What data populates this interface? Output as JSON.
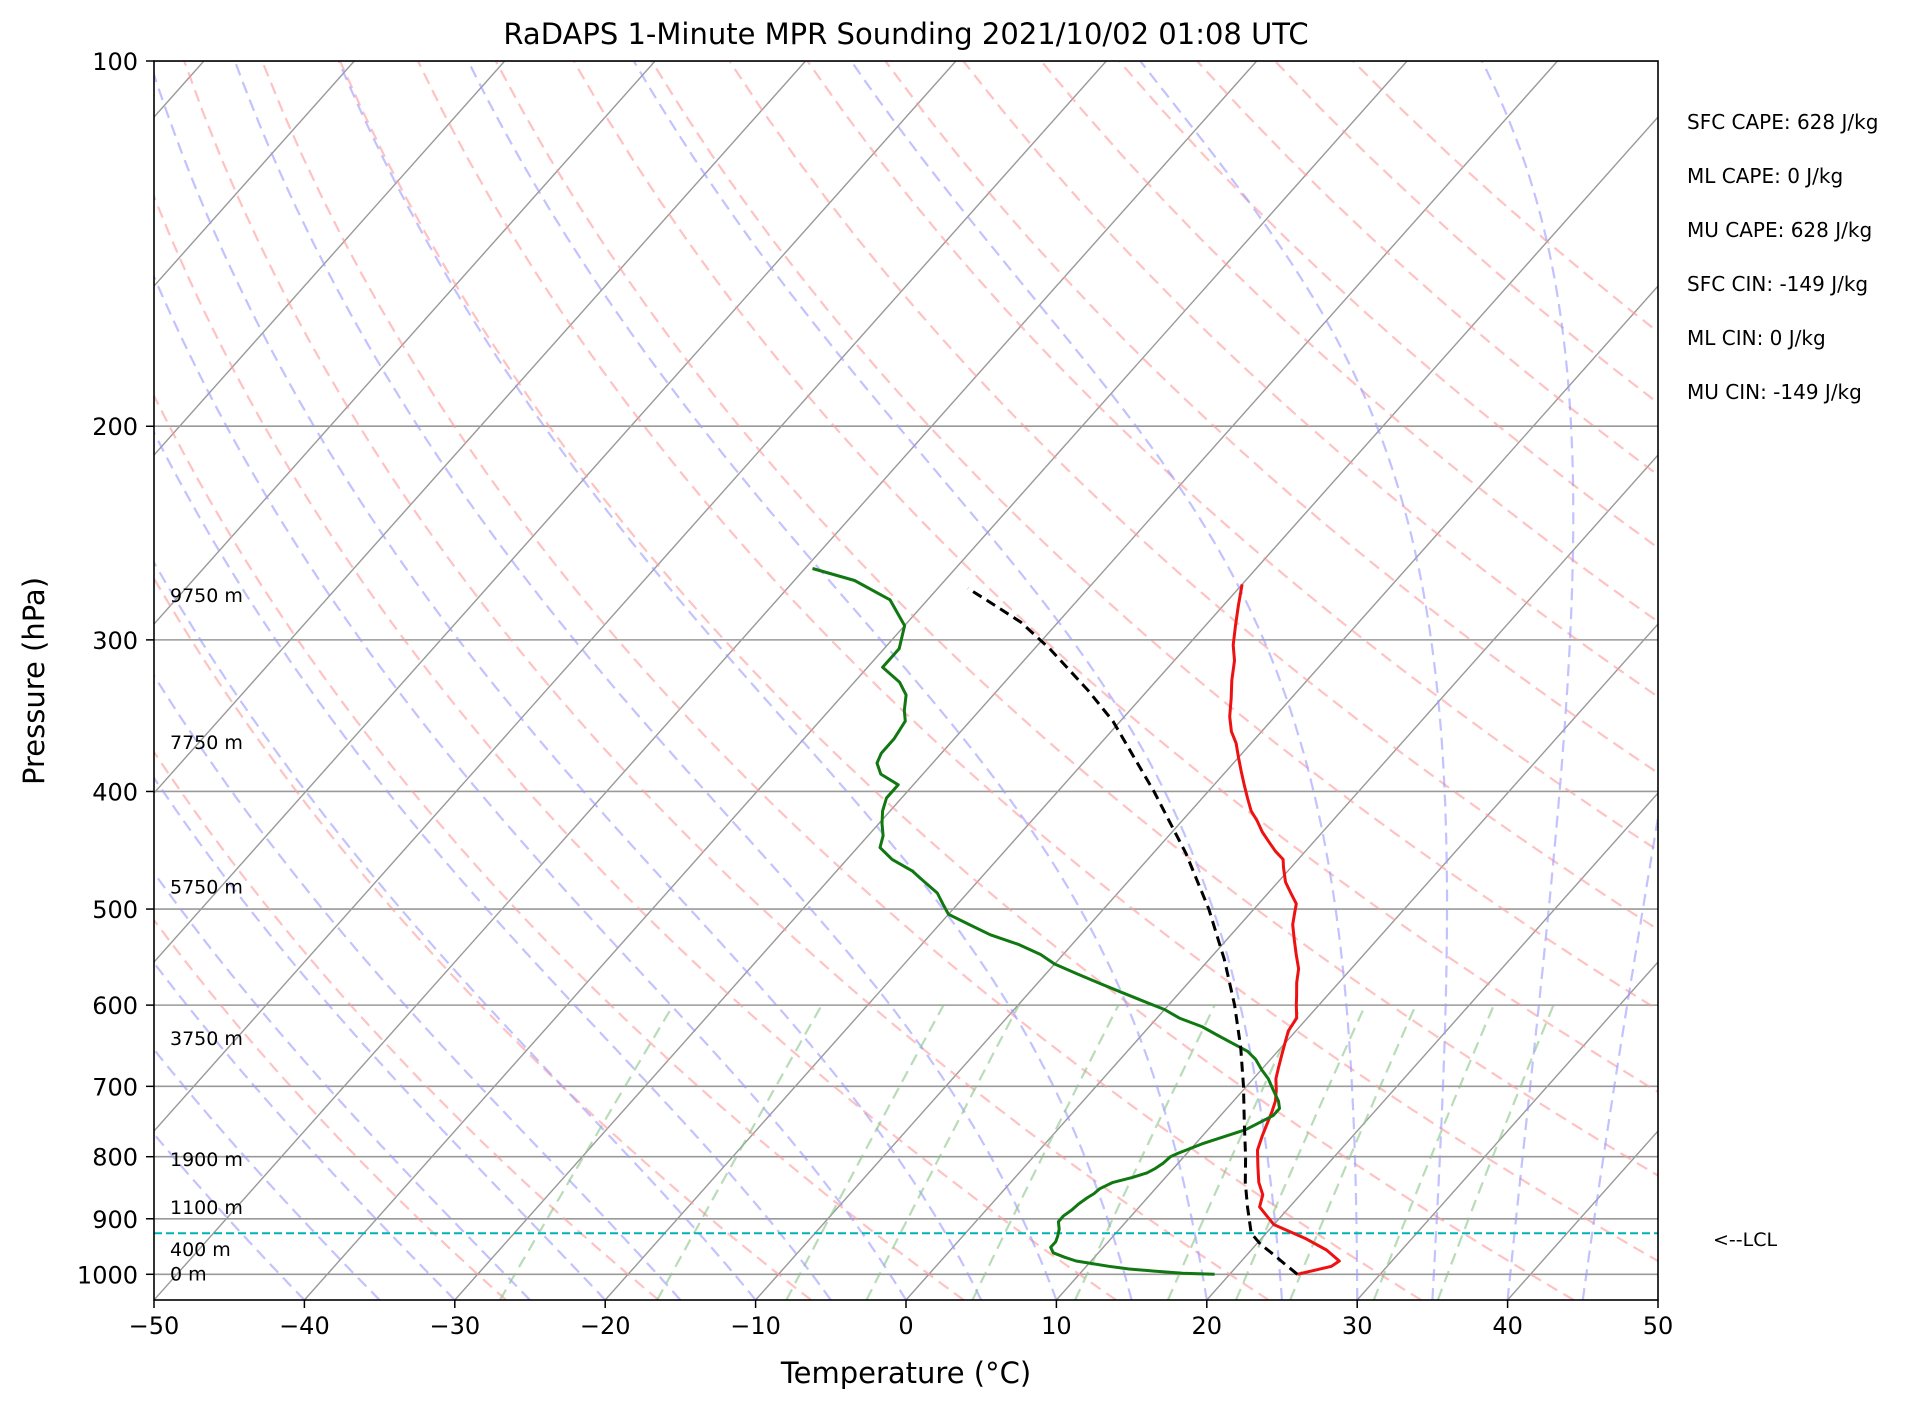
{
  "chart_data": {
    "type": "line",
    "title": "RaDAPS 1-Minute MPR Sounding 2021/10/02 01:08 UTC",
    "xlabel": "Temperature (°C)",
    "ylabel": "Pressure (hPa)",
    "xlim": [
      -50,
      50
    ],
    "ylim": [
      1050,
      100
    ],
    "y_scale": "log",
    "grid": true,
    "x_ticks": [
      -50,
      -40,
      -30,
      -20,
      -10,
      0,
      10,
      20,
      30,
      40,
      50
    ],
    "y_ticks": [
      1000,
      900,
      800,
      700,
      600,
      500,
      400,
      300,
      200,
      100
    ],
    "x_tick_labels": [
      "−50",
      "−40",
      "−30",
      "−20",
      "−10",
      "0",
      "10",
      "20",
      "30",
      "40",
      "50"
    ],
    "y_tick_labels": [
      "1000",
      "900",
      "800",
      "700",
      "600",
      "500",
      "400",
      "300",
      "200",
      "100"
    ],
    "colors": {
      "temperature": "#ee1111",
      "dewpoint": "#117711",
      "parcel": "#000000",
      "lcl": "#00b3b3",
      "dry_adiabat": "#ff9999",
      "moist_adiabat": "#9999ff",
      "mixing_ratio": "#88c488",
      "isotherm": "#999999"
    },
    "series": [
      {
        "key": "temperature",
        "points": [
          [
            24.5,
            1000
          ],
          [
            26.3,
            985
          ],
          [
            26.5,
            975
          ],
          [
            25.0,
            955
          ],
          [
            23.0,
            935
          ],
          [
            20.0,
            910
          ],
          [
            19.0,
            895
          ],
          [
            18.0,
            880
          ],
          [
            17.5,
            860
          ],
          [
            16.5,
            840
          ],
          [
            15.5,
            815
          ],
          [
            14.5,
            790
          ],
          [
            14.0,
            770
          ],
          [
            13.2,
            735
          ],
          [
            12.8,
            720
          ],
          [
            12.2,
            705
          ],
          [
            11.5,
            690
          ],
          [
            11.0,
            675
          ],
          [
            10.5,
            660
          ],
          [
            10.0,
            645
          ],
          [
            9.5,
            630
          ],
          [
            9.3,
            615
          ],
          [
            8.5,
            600
          ],
          [
            8.0,
            590
          ],
          [
            7.2,
            575
          ],
          [
            6.5,
            560
          ],
          [
            5.5,
            545
          ],
          [
            4.5,
            530
          ],
          [
            3.5,
            515
          ],
          [
            3.0,
            505
          ],
          [
            2.5,
            495
          ],
          [
            1.5,
            485
          ],
          [
            0.5,
            475
          ],
          [
            -0.5,
            462
          ],
          [
            -1.0,
            455
          ],
          [
            -2.0,
            448
          ],
          [
            -3.0,
            440
          ],
          [
            -4.0,
            432
          ],
          [
            -5.0,
            423
          ],
          [
            -6.0,
            415
          ],
          [
            -7.0,
            405
          ],
          [
            -8.0,
            395
          ],
          [
            -9.0,
            385
          ],
          [
            -10.0,
            375
          ],
          [
            -11.0,
            365
          ],
          [
            -12.0,
            357
          ],
          [
            -13.0,
            347
          ],
          [
            -14.0,
            335
          ],
          [
            -15.0,
            324
          ],
          [
            -16.0,
            312
          ],
          [
            -17.0,
            303
          ],
          [
            -18.0,
            292
          ],
          [
            -19.0,
            281
          ],
          [
            -20.0,
            270
          ]
        ]
      },
      {
        "key": "dewpoint",
        "points": [
          [
            19.0,
            1000
          ],
          [
            16.8,
            998
          ],
          [
            14.8,
            994
          ],
          [
            13.0,
            990
          ],
          [
            11.5,
            985
          ],
          [
            9.0,
            975
          ],
          [
            8.0,
            968
          ],
          [
            7.0,
            960
          ],
          [
            6.5,
            950
          ],
          [
            6.5,
            940
          ],
          [
            6.3,
            930
          ],
          [
            6.0,
            918
          ],
          [
            5.5,
            905
          ],
          [
            5.5,
            895
          ],
          [
            5.7,
            885
          ],
          [
            5.8,
            875
          ],
          [
            6.0,
            865
          ],
          [
            6.2,
            858
          ],
          [
            6.3,
            850
          ],
          [
            6.8,
            840
          ],
          [
            7.8,
            832
          ],
          [
            8.5,
            825
          ],
          [
            8.8,
            818
          ],
          [
            9.0,
            810
          ],
          [
            9.1,
            800
          ],
          [
            9.4,
            795
          ],
          [
            10.5,
            780
          ],
          [
            11.5,
            770
          ],
          [
            12.5,
            760
          ],
          [
            13.0,
            750
          ],
          [
            13.5,
            740
          ],
          [
            13.5,
            730
          ],
          [
            13.0,
            720
          ],
          [
            12.0,
            705
          ],
          [
            11.0,
            690
          ],
          [
            10.0,
            678
          ],
          [
            9.0,
            665
          ],
          [
            8.0,
            655
          ],
          [
            6.5,
            645
          ],
          [
            5.0,
            635
          ],
          [
            3.5,
            625
          ],
          [
            1.5,
            615
          ],
          [
            0,
            605
          ],
          [
            -2.0,
            595
          ],
          [
            -4.0,
            585
          ],
          [
            -6.0,
            575
          ],
          [
            -8.0,
            565
          ],
          [
            -10.0,
            555
          ],
          [
            -11.5,
            545
          ],
          [
            -13.5,
            535
          ],
          [
            -16.0,
            525
          ],
          [
            -18.0,
            515
          ],
          [
            -20.0,
            505
          ],
          [
            -21.0,
            495
          ],
          [
            -22.0,
            485
          ],
          [
            -23.5,
            475
          ],
          [
            -25.0,
            465
          ],
          [
            -27.0,
            455
          ],
          [
            -28.5,
            445
          ],
          [
            -29.0,
            435
          ],
          [
            -29.8,
            425
          ],
          [
            -30.5,
            415
          ],
          [
            -31.0,
            405
          ],
          [
            -31.0,
            395
          ],
          [
            -32.8,
            387
          ],
          [
            -33.7,
            379
          ],
          [
            -34.0,
            372
          ],
          [
            -34.0,
            362
          ],
          [
            -34.3,
            350
          ],
          [
            -35.0,
            343
          ],
          [
            -35.8,
            333
          ],
          [
            -37.0,
            325
          ],
          [
            -39.0,
            316
          ],
          [
            -39.0,
            305
          ],
          [
            -40.0,
            292
          ],
          [
            -42.5,
            278
          ],
          [
            -46.0,
            268
          ],
          [
            -49.5,
            262
          ]
        ]
      },
      {
        "key": "parcel",
        "points": [
          [
            24.5,
            1000
          ],
          [
            23.0,
            980
          ],
          [
            21.5,
            960
          ],
          [
            20.3,
            945
          ],
          [
            19.0,
            925
          ],
          [
            17.2,
            880
          ],
          [
            15.6,
            840
          ],
          [
            14.1,
            800
          ],
          [
            12.0,
            750
          ],
          [
            9.8,
            700
          ],
          [
            7.3,
            650
          ],
          [
            4.4,
            600
          ],
          [
            1.0,
            550
          ],
          [
            -3.0,
            500
          ],
          [
            -7.8,
            450
          ],
          [
            -13.6,
            400
          ],
          [
            -20.5,
            350
          ],
          [
            -24.0,
            330
          ],
          [
            -29.0,
            305
          ],
          [
            -32.5,
            290
          ],
          [
            -35.5,
            280
          ],
          [
            -38.0,
            272
          ]
        ]
      }
    ],
    "lcl": {
      "pressure": 925,
      "label": "<--LCL"
    },
    "height_labels": [
      {
        "text": "0 m",
        "pressure": 1000
      },
      {
        "text": "400 m",
        "pressure": 955
      },
      {
        "text": "1100 m",
        "pressure": 882
      },
      {
        "text": "1900 m",
        "pressure": 805
      },
      {
        "text": "3750 m",
        "pressure": 640
      },
      {
        "text": "5750 m",
        "pressure": 480
      },
      {
        "text": "7750 m",
        "pressure": 365
      },
      {
        "text": "9750 m",
        "pressure": 276
      }
    ],
    "annotations": [
      "SFC CAPE: 628 J/kg",
      "ML CAPE: 0 J/kg",
      "MU CAPE: 628 J/kg",
      "SFC CIN: -149 J/kg",
      "ML CIN: 0 J/kg",
      "MU CIN: -149 J/kg"
    ]
  }
}
